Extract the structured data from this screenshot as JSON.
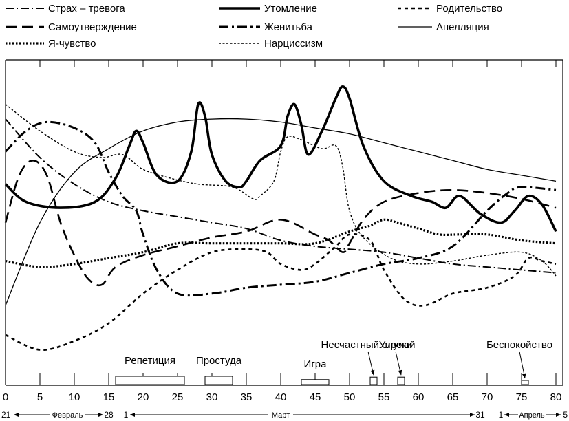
{
  "chart_data": {
    "type": "line",
    "title": "",
    "xlabel": "",
    "ylabel": "",
    "x_ticks": [
      0,
      5,
      10,
      15,
      20,
      25,
      30,
      35,
      40,
      45,
      50,
      55,
      60,
      65,
      70,
      75,
      80
    ],
    "xlim": [
      0,
      81
    ],
    "ylim": [
      0,
      100
    ],
    "legend": [
      {
        "name": "Страх – тревога",
        "style": "dashdot",
        "column": 0,
        "row": 0
      },
      {
        "name": "Самоутверждение",
        "style": "longdash",
        "column": 0,
        "row": 1
      },
      {
        "name": "Я-чувство",
        "style": "dotted-bold",
        "column": 0,
        "row": 2
      },
      {
        "name": "Утомление",
        "style": "bold",
        "column": 1,
        "row": 0
      },
      {
        "name": "Женитьба",
        "style": "dashdot-bold",
        "column": 1,
        "row": 1
      },
      {
        "name": "Нарциссизм",
        "style": "dashed-fine",
        "column": 1,
        "row": 2
      },
      {
        "name": "Родительство",
        "style": "dashed-bold",
        "column": 2,
        "row": 0
      },
      {
        "name": "Апелляция",
        "style": "thin",
        "column": 2,
        "row": 1
      }
    ],
    "series": [
      {
        "name": "Утомление",
        "style": "bold",
        "x": [
          0,
          3,
          8,
          13,
          16,
          18,
          19,
          20,
          22,
          25,
          27,
          28,
          29,
          30,
          32,
          34,
          35,
          37,
          40,
          41,
          42,
          43,
          44,
          46,
          48,
          49,
          50,
          52,
          55,
          59,
          62,
          64,
          66,
          69,
          72,
          74,
          76,
          78,
          80
        ],
        "y": [
          61,
          55,
          53,
          55,
          63,
          74,
          79,
          75,
          64,
          62,
          72,
          88,
          84,
          71,
          62,
          60,
          62,
          69,
          74,
          84,
          88,
          81,
          71,
          79,
          90,
          94,
          90,
          74,
          62,
          57,
          55,
          53,
          57,
          51,
          48,
          52,
          57,
          54,
          45
        ]
      },
      {
        "name": "Нарциссизм",
        "style": "dashed-fine",
        "x": [
          0,
          5,
          10,
          14,
          17,
          20,
          24,
          28,
          33,
          36,
          37,
          39,
          40,
          41,
          43,
          46,
          48,
          49,
          50,
          52,
          56,
          60,
          65,
          70,
          75,
          78,
          80
        ],
        "y": [
          88,
          79,
          72,
          70,
          71,
          66,
          63,
          61,
          60,
          56,
          57,
          62,
          72,
          77,
          76,
          73,
          74,
          67,
          52,
          43,
          36,
          34,
          35,
          37,
          38,
          35,
          30
        ]
      },
      {
        "name": "Апелляция",
        "style": "thin",
        "x": [
          0,
          5,
          10,
          15,
          20,
          25,
          30,
          35,
          40,
          45,
          50,
          55,
          60,
          65,
          70,
          75,
          80
        ],
        "y": [
          20,
          48,
          65,
          73,
          79,
          82,
          83,
          83,
          82,
          80,
          78,
          75,
          72,
          69,
          66,
          64,
          62
        ]
      },
      {
        "name": "Страх – тревога",
        "style": "dashdot",
        "x": [
          0,
          5,
          10,
          15,
          20,
          25,
          30,
          35,
          40,
          45,
          50,
          55,
          60,
          65,
          70,
          75,
          80
        ],
        "y": [
          83,
          70,
          61,
          55,
          52,
          50,
          48,
          46,
          42,
          40,
          39,
          38,
          36,
          34,
          33,
          32,
          31
        ]
      },
      {
        "name": "Женитьба",
        "style": "dashdot-bold",
        "x": [
          0,
          3,
          6,
          10,
          13,
          15,
          17,
          19,
          20,
          22,
          25,
          30,
          35,
          40,
          45,
          50,
          55,
          60,
          65,
          70,
          73,
          75,
          80
        ],
        "y": [
          72,
          79,
          82,
          80,
          75,
          65,
          57,
          52,
          44,
          32,
          24,
          24,
          26,
          27,
          28,
          31,
          34,
          36,
          40,
          52,
          58,
          60,
          59
        ]
      },
      {
        "name": "Самоутверждение",
        "style": "longdash",
        "x": [
          0,
          2,
          4,
          6,
          8,
          10,
          12,
          14,
          16,
          20,
          25,
          30,
          35,
          40,
          45,
          47,
          49,
          50,
          52,
          55,
          60,
          65,
          70,
          75,
          80
        ],
        "y": [
          48,
          64,
          69,
          64,
          48,
          37,
          29,
          27,
          33,
          37,
          40,
          43,
          45,
          49,
          44,
          42,
          38,
          41,
          49,
          55,
          58,
          59,
          58,
          56,
          53
        ]
      },
      {
        "name": "Я-чувство",
        "style": "dotted-bold",
        "x": [
          0,
          5,
          10,
          15,
          20,
          25,
          30,
          35,
          40,
          45,
          50,
          53,
          55,
          57,
          60,
          63,
          66,
          70,
          75,
          80
        ],
        "y": [
          35,
          33,
          34,
          36,
          38,
          41,
          41,
          41,
          41,
          41,
          45,
          47,
          49,
          48,
          46,
          44,
          44,
          44,
          42,
          41
        ]
      },
      {
        "name": "Родительство",
        "style": "dashed-bold",
        "x": [
          0,
          5,
          10,
          15,
          20,
          25,
          30,
          35,
          38,
          40,
          43,
          45,
          48,
          50,
          53,
          55,
          58,
          61,
          65,
          70,
          74,
          76,
          78,
          80
        ],
        "y": [
          10,
          5,
          8,
          14,
          24,
          32,
          38,
          39,
          38,
          34,
          32,
          34,
          40,
          44,
          42,
          32,
          22,
          20,
          24,
          26,
          30,
          36,
          35,
          34
        ]
      }
    ],
    "events": [
      {
        "label": "Репетиция",
        "x_start": 16,
        "x_end": 26,
        "height": 1
      },
      {
        "label": "Простуда",
        "x_start": 29,
        "x_end": 33,
        "height": 1
      },
      {
        "label": "Игра",
        "x_start": 43,
        "x_end": 47,
        "height": 0.6
      },
      {
        "label": "Несчастный случай",
        "x_start": 53,
        "x_end": 54,
        "height": 0.9,
        "arrow": true
      },
      {
        "label": "Упреки",
        "x_start": 57,
        "x_end": 58,
        "height": 0.9,
        "arrow": true
      },
      {
        "label": "Беспокойство",
        "x_start": 75,
        "x_end": 76,
        "height": 0.5,
        "arrow": true
      }
    ],
    "dates": [
      {
        "label": "21",
        "x": -1
      },
      {
        "label": "Февраль",
        "x": 9
      },
      {
        "label": "28",
        "x": 15
      },
      {
        "label": "1",
        "x": 17.5
      },
      {
        "label": "Март",
        "x": 40
      },
      {
        "label": "31",
        "x": 69
      },
      {
        "label": "1",
        "x": 72
      },
      {
        "label": "Апрель",
        "x": 76.5
      },
      {
        "label": "5",
        "x": 81
      }
    ]
  }
}
